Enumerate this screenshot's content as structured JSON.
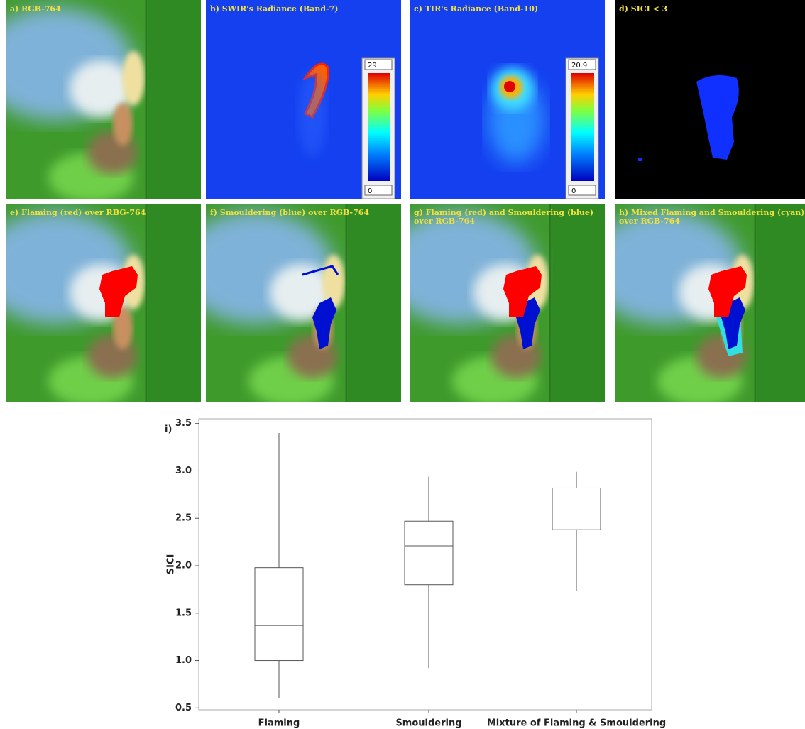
{
  "panels": [
    {
      "label": [
        "a) RGB-764"
      ]
    },
    {
      "label": [
        "b) SWIR's Radiance (Band-7)"
      ],
      "colorbar": [
        "29",
        "0"
      ]
    },
    {
      "label": [
        "c) TIR's Radiance (Band-10)"
      ],
      "colorbar": [
        "20.9",
        "0"
      ]
    },
    {
      "label": [
        "d) SICI < 3"
      ]
    },
    {
      "label": [
        "e) Flaming (red) over RBG-764"
      ]
    },
    {
      "label": [
        "f) Smouldering (blue) over RGB-764"
      ]
    },
    {
      "label": [
        "g) Flaming (red) and Smouldering (blue)",
        "over RGB-764"
      ]
    },
    {
      "label": [
        "h) Mixed Flaming and Smouldering (cyan)",
        "over RGB-764"
      ]
    }
  ],
  "chart_data": {
    "type": "box",
    "title": "i)",
    "y_label": "SICI",
    "categories": [
      "Flaming",
      "Smouldering",
      "Mixture of Flaming & Smouldering"
    ],
    "boxes": [
      {
        "min": 0.6,
        "q1": 1.0,
        "median": 1.37,
        "q3": 1.98,
        "max": 3.4
      },
      {
        "min": 0.92,
        "q1": 1.8,
        "median": 2.21,
        "q3": 2.47,
        "max": 2.94
      },
      {
        "min": 1.73,
        "q1": 2.38,
        "median": 2.61,
        "q3": 2.82,
        "max": 2.99
      }
    ],
    "ylim": [
      0.48,
      3.55
    ],
    "yticks": [
      0.5,
      {
        "value": 1,
        "label": "1.0"
      },
      1.5,
      {
        "value": 2,
        "label": "2.0"
      },
      2.5,
      {
        "value": 3,
        "label": "3.0"
      },
      3.5
    ],
    "color": "#555555"
  }
}
